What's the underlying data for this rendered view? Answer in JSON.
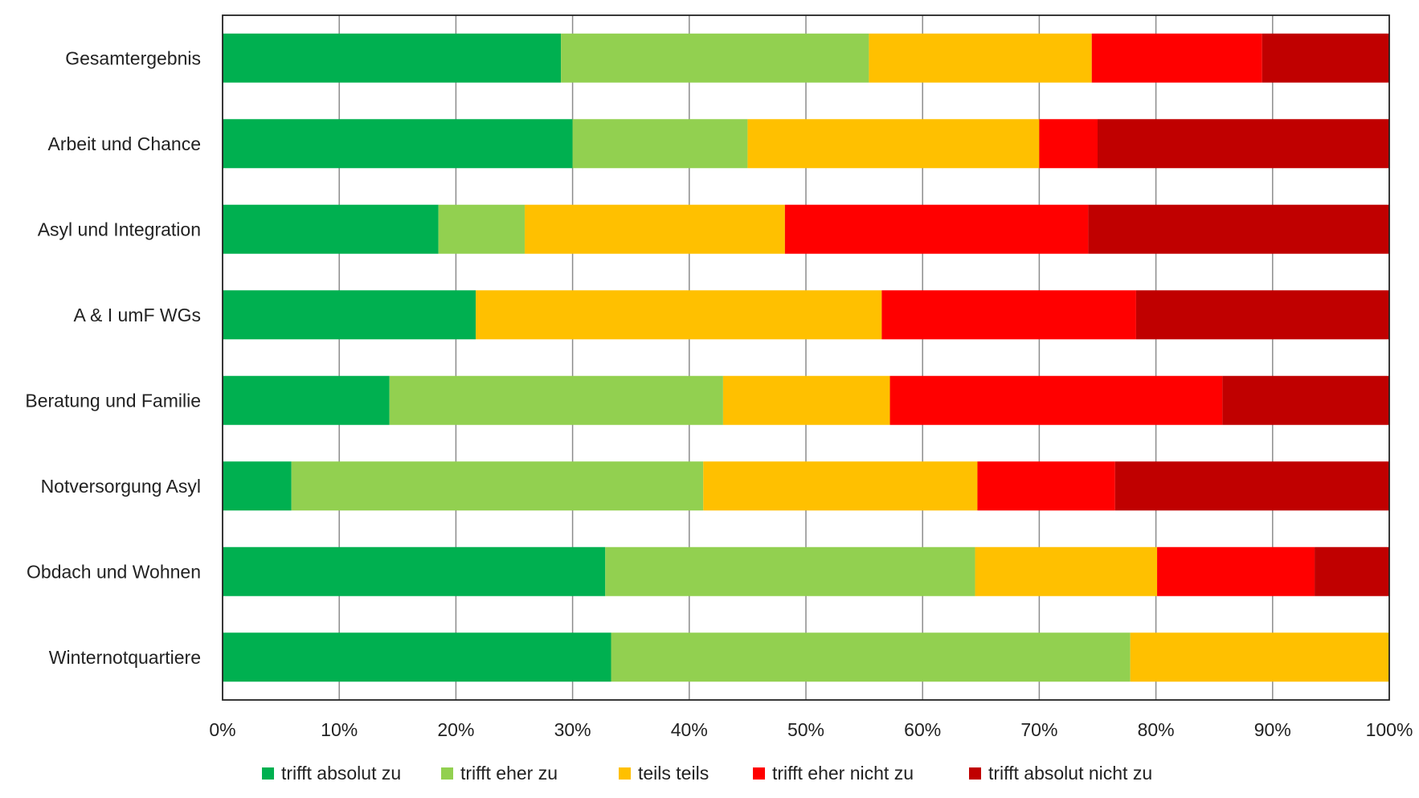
{
  "chart_data": {
    "type": "bar",
    "orientation": "horizontal",
    "stacked": "percent",
    "title": "",
    "xlabel": "",
    "ylabel": "",
    "xlim": [
      0,
      100
    ],
    "x_ticks": [
      "0%",
      "10%",
      "20%",
      "30%",
      "40%",
      "50%",
      "60%",
      "70%",
      "80%",
      "90%",
      "100%"
    ],
    "grid": "vertical",
    "legend_position": "bottom",
    "categories": [
      "Gesamtergebnis",
      "Arbeit und Chance",
      "Asyl und Integration",
      "A & I umF WGs",
      "Beratung und Familie",
      "Notversorgung Asyl",
      "Obdach und Wohnen",
      "Winternotquartiere"
    ],
    "series": [
      {
        "name": "trifft absolut zu",
        "color": "#00b050",
        "values": [
          29,
          30,
          18.5,
          21.7,
          14.3,
          5.9,
          32.8,
          33.3
        ]
      },
      {
        "name": "trifft eher zu",
        "color": "#92d050",
        "values": [
          26.4,
          15,
          7.4,
          0,
          28.6,
          35.3,
          31.7,
          44.5
        ]
      },
      {
        "name": "teils teils",
        "color": "#ffc000",
        "values": [
          19.1,
          25,
          22.3,
          34.8,
          14.3,
          23.5,
          15.6,
          22.2
        ]
      },
      {
        "name": "trifft eher nicht zu",
        "color": "#ff0000",
        "values": [
          14.6,
          5,
          26,
          21.8,
          28.5,
          11.8,
          13.5,
          0
        ]
      },
      {
        "name": "trifft absolut nicht zu",
        "color": "#c00000",
        "values": [
          10.9,
          25,
          25.8,
          21.7,
          14.3,
          23.5,
          6.4,
          0
        ]
      }
    ]
  }
}
